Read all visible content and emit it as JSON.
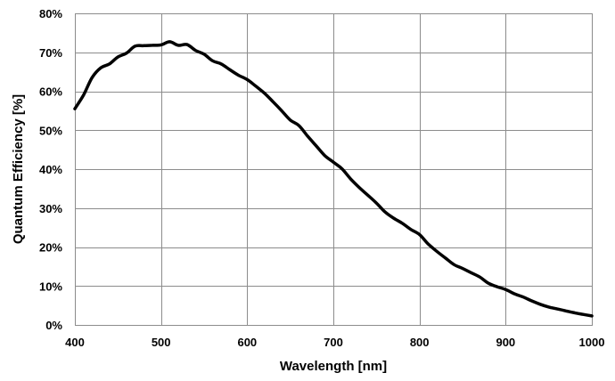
{
  "chart_data": {
    "type": "line",
    "title": "",
    "xlabel": "Wavelength [nm]",
    "ylabel": "Quantum Efficiency [%]",
    "xlim": [
      400,
      1000
    ],
    "ylim": [
      0,
      80
    ],
    "x_ticks": [
      400,
      500,
      600,
      700,
      800,
      900,
      1000
    ],
    "x_tick_labels": [
      "400",
      "500",
      "600",
      "700",
      "800",
      "900",
      "1000"
    ],
    "y_ticks": [
      0,
      10,
      20,
      30,
      40,
      50,
      60,
      70,
      80
    ],
    "y_tick_labels": [
      "0%",
      "10%",
      "20%",
      "30%",
      "40%",
      "50%",
      "60%",
      "70%",
      "80%"
    ],
    "grid": true,
    "legend": "none",
    "series": [
      {
        "color": "#000000",
        "x": [
          400,
          410,
          420,
          430,
          440,
          450,
          460,
          470,
          480,
          490,
          500,
          510,
          520,
          530,
          540,
          550,
          560,
          570,
          580,
          590,
          600,
          610,
          620,
          630,
          640,
          650,
          660,
          670,
          680,
          690,
          700,
          710,
          720,
          730,
          740,
          750,
          760,
          770,
          780,
          790,
          800,
          810,
          820,
          830,
          840,
          850,
          860,
          870,
          880,
          890,
          900,
          910,
          920,
          930,
          940,
          950,
          960,
          970,
          980,
          990,
          1000
        ],
        "y": [
          55.5,
          59,
          63.5,
          66,
          67,
          68.8,
          69.8,
          71.6,
          71.7,
          71.8,
          71.9,
          72.7,
          71.8,
          72,
          70.5,
          69.5,
          67.8,
          67,
          65.5,
          64.1,
          63,
          61.3,
          59.5,
          57.3,
          55,
          52.6,
          51.2,
          48.5,
          46,
          43.5,
          41.8,
          40.1,
          37.5,
          35.3,
          33.3,
          31.3,
          29,
          27.4,
          26.1,
          24.5,
          23.2,
          20.8,
          18.9,
          17.2,
          15.5,
          14.5,
          13.4,
          12.3,
          10.7,
          9.8,
          9.1,
          8,
          7.2,
          6.2,
          5.3,
          4.6,
          4.1,
          3.6,
          3.1,
          2.7,
          2.3
        ]
      }
    ]
  }
}
